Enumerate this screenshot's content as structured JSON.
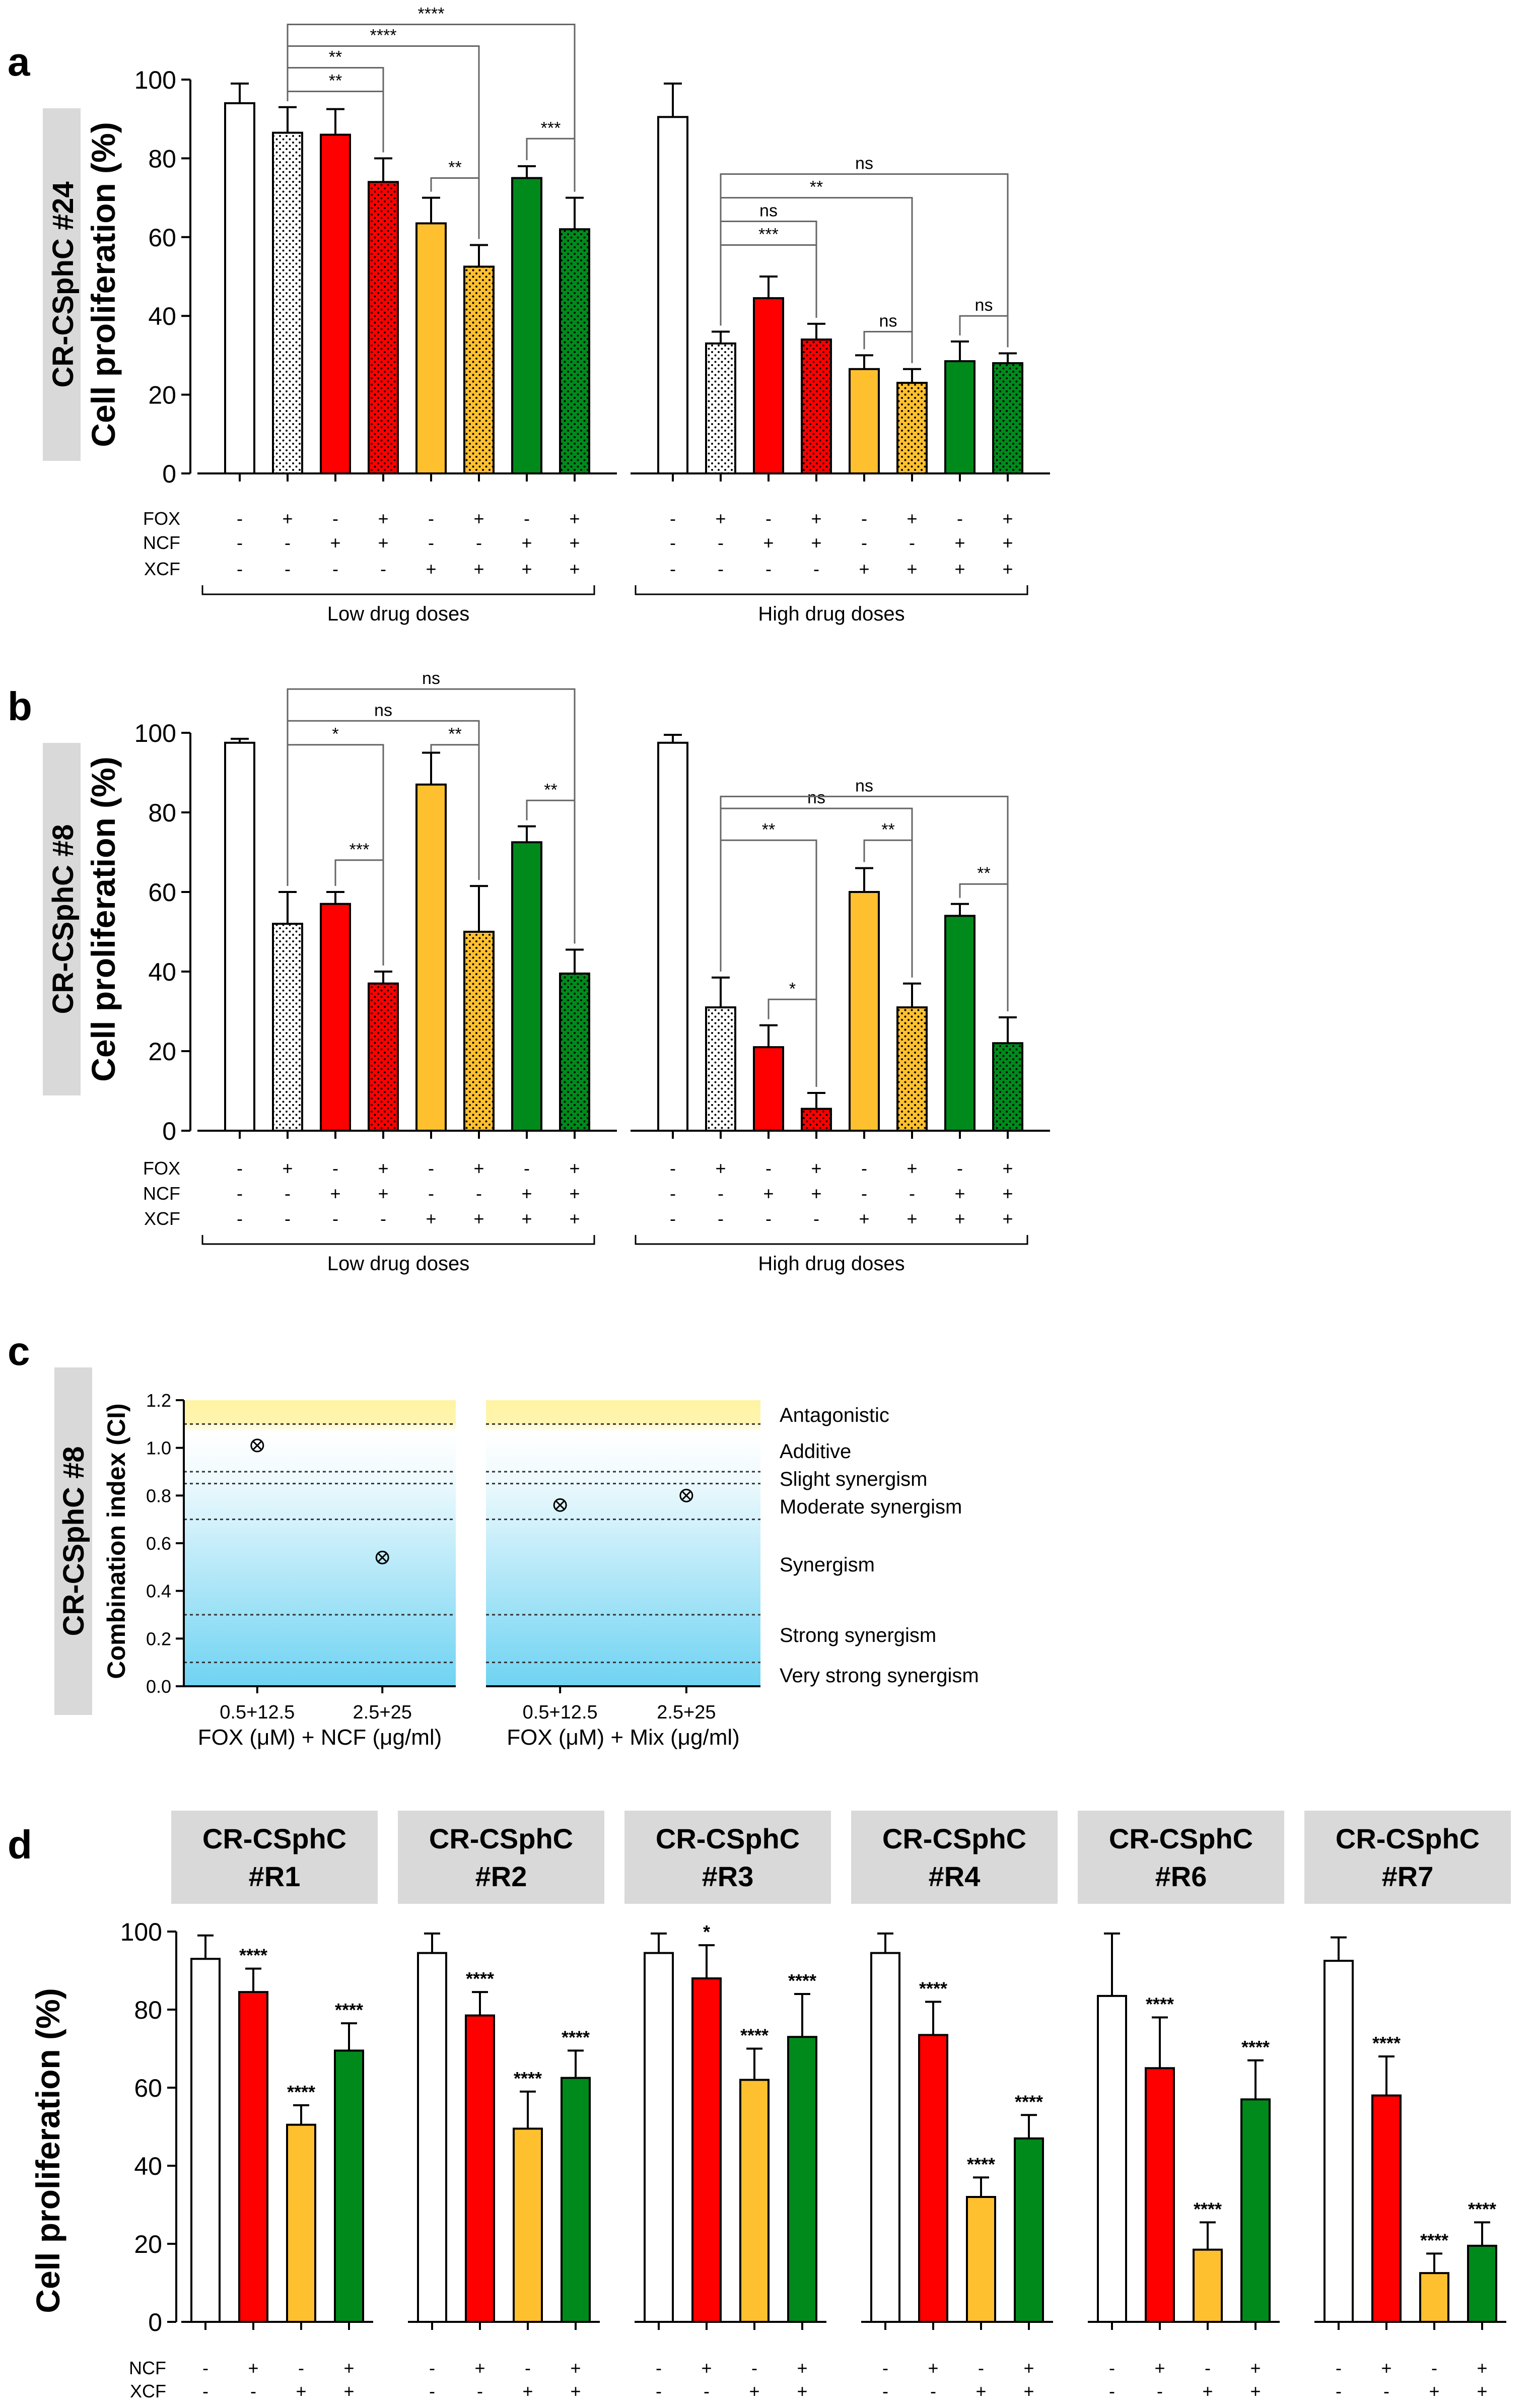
{
  "colors": {
    "white": "#ffffff",
    "red": "#ff0000",
    "orange": "#fec02f",
    "green": "#008a1c",
    "grey": "#d9d9d9",
    "ink": "#000000",
    "band_top": "#fff4b0",
    "band_mid": "#ffffff",
    "band_low": "#68d2f2"
  },
  "panel_labels": {
    "a": "a",
    "b": "b",
    "c": "c",
    "d": "d"
  },
  "chart_data": [
    {
      "id": "a",
      "type": "bar",
      "ylabel": "Cell proliferation (%)",
      "side_label": "CR-CSphC #24",
      "ylim": [
        0,
        100
      ],
      "yticks": [
        0,
        20,
        40,
        60,
        80,
        100
      ],
      "row_labels": [
        "FOX",
        "NCF",
        "XCF"
      ],
      "groups": [
        {
          "name": "Low drug doses",
          "bars": [
            {
              "value": 94,
              "error": 5,
              "color": "white",
              "dotted": false,
              "signs": [
                "-",
                "-",
                "-"
              ]
            },
            {
              "value": 86.5,
              "error": 6.5,
              "color": "white",
              "dotted": true,
              "signs": [
                "+",
                "-",
                "-"
              ]
            },
            {
              "value": 86,
              "error": 6.5,
              "color": "red",
              "dotted": false,
              "signs": [
                "-",
                "+",
                "-"
              ]
            },
            {
              "value": 74,
              "error": 6,
              "color": "red",
              "dotted": true,
              "signs": [
                "+",
                "+",
                "-"
              ]
            },
            {
              "value": 63.5,
              "error": 6.5,
              "color": "orange",
              "dotted": false,
              "signs": [
                "-",
                "-",
                "+"
              ]
            },
            {
              "value": 52.5,
              "error": 5.5,
              "color": "orange",
              "dotted": true,
              "signs": [
                "+",
                "-",
                "+"
              ]
            },
            {
              "value": 75,
              "error": 3,
              "color": "green",
              "dotted": false,
              "signs": [
                "-",
                "+",
                "+"
              ]
            },
            {
              "value": 62,
              "error": 8,
              "color": "green",
              "dotted": true,
              "signs": [
                "+",
                "+",
                "+"
              ]
            }
          ],
          "brackets": [
            {
              "from": 1,
              "to": 3,
              "level": 97,
              "label": "**"
            },
            {
              "from": 1,
              "to": 3,
              "level": 103,
              "label": "**"
            },
            {
              "from": 1,
              "to": 5,
              "level": 108.5,
              "label": "****"
            },
            {
              "from": 1,
              "to": 7,
              "level": 114,
              "label": "****"
            },
            {
              "from": 4,
              "to": 5,
              "level": 75,
              "label": "**"
            },
            {
              "from": 6,
              "to": 7,
              "level": 85,
              "label": "***"
            }
          ]
        },
        {
          "name": "High drug doses",
          "bars": [
            {
              "value": 90.5,
              "error": 8.5,
              "color": "white",
              "dotted": false,
              "signs": [
                "-",
                "-",
                "-"
              ]
            },
            {
              "value": 33,
              "error": 3,
              "color": "white",
              "dotted": true,
              "signs": [
                "+",
                "-",
                "-"
              ]
            },
            {
              "value": 44.5,
              "error": 5.5,
              "color": "red",
              "dotted": false,
              "signs": [
                "-",
                "+",
                "-"
              ]
            },
            {
              "value": 34,
              "error": 4,
              "color": "red",
              "dotted": true,
              "signs": [
                "+",
                "+",
                "-"
              ]
            },
            {
              "value": 26.5,
              "error": 3.5,
              "color": "orange",
              "dotted": false,
              "signs": [
                "-",
                "-",
                "+"
              ]
            },
            {
              "value": 23,
              "error": 3.5,
              "color": "orange",
              "dotted": true,
              "signs": [
                "+",
                "-",
                "+"
              ]
            },
            {
              "value": 28.5,
              "error": 5,
              "color": "green",
              "dotted": false,
              "signs": [
                "-",
                "+",
                "+"
              ]
            },
            {
              "value": 28,
              "error": 2.5,
              "color": "green",
              "dotted": true,
              "signs": [
                "+",
                "+",
                "+"
              ]
            }
          ],
          "brackets": [
            {
              "from": 1,
              "to": 3,
              "level": 58,
              "label": "***"
            },
            {
              "from": 1,
              "to": 3,
              "level": 64,
              "label": "ns"
            },
            {
              "from": 1,
              "to": 5,
              "level": 70,
              "label": "**"
            },
            {
              "from": 1,
              "to": 7,
              "level": 76,
              "label": "ns"
            },
            {
              "from": 4,
              "to": 5,
              "level": 36,
              "label": "ns"
            },
            {
              "from": 6,
              "to": 7,
              "level": 40,
              "label": "ns"
            }
          ]
        }
      ]
    },
    {
      "id": "b",
      "type": "bar",
      "ylabel": "Cell proliferation (%)",
      "side_label": "CR-CSphC #8",
      "ylim": [
        0,
        100
      ],
      "yticks": [
        0,
        20,
        40,
        60,
        80,
        100
      ],
      "row_labels": [
        "FOX",
        "NCF",
        "XCF"
      ],
      "groups": [
        {
          "name": "Low drug doses",
          "bars": [
            {
              "value": 97.5,
              "error": 1,
              "color": "white",
              "dotted": false,
              "signs": [
                "-",
                "-",
                "-"
              ]
            },
            {
              "value": 52,
              "error": 8,
              "color": "white",
              "dotted": true,
              "signs": [
                "+",
                "-",
                "-"
              ]
            },
            {
              "value": 57,
              "error": 3,
              "color": "red",
              "dotted": false,
              "signs": [
                "-",
                "+",
                "-"
              ]
            },
            {
              "value": 37,
              "error": 3,
              "color": "red",
              "dotted": true,
              "signs": [
                "+",
                "+",
                "-"
              ]
            },
            {
              "value": 87,
              "error": 8,
              "color": "orange",
              "dotted": false,
              "signs": [
                "-",
                "-",
                "+"
              ]
            },
            {
              "value": 50,
              "error": 11.5,
              "color": "orange",
              "dotted": true,
              "signs": [
                "+",
                "-",
                "+"
              ]
            },
            {
              "value": 72.5,
              "error": 4,
              "color": "green",
              "dotted": false,
              "signs": [
                "-",
                "+",
                "+"
              ]
            },
            {
              "value": 39.5,
              "error": 6,
              "color": "green",
              "dotted": true,
              "signs": [
                "+",
                "+",
                "+"
              ]
            }
          ],
          "brackets": [
            {
              "from": 2,
              "to": 3,
              "level": 68,
              "label": "***"
            },
            {
              "from": 1,
              "to": 3,
              "level": 97,
              "label": "*"
            },
            {
              "from": 1,
              "to": 5,
              "level": 103,
              "label": "ns"
            },
            {
              "from": 1,
              "to": 7,
              "level": 111,
              "label": "ns"
            },
            {
              "from": 4,
              "to": 5,
              "level": 97,
              "label": "**"
            },
            {
              "from": 6,
              "to": 7,
              "level": 83,
              "label": "**"
            }
          ]
        },
        {
          "name": "High drug doses",
          "bars": [
            {
              "value": 97.5,
              "error": 2,
              "color": "white",
              "dotted": false,
              "signs": [
                "-",
                "-",
                "-"
              ]
            },
            {
              "value": 31,
              "error": 7.5,
              "color": "white",
              "dotted": true,
              "signs": [
                "+",
                "-",
                "-"
              ]
            },
            {
              "value": 21,
              "error": 5.5,
              "color": "red",
              "dotted": false,
              "signs": [
                "-",
                "+",
                "-"
              ]
            },
            {
              "value": 5.5,
              "error": 4,
              "color": "red",
              "dotted": true,
              "signs": [
                "+",
                "+",
                "-"
              ]
            },
            {
              "value": 60,
              "error": 6,
              "color": "orange",
              "dotted": false,
              "signs": [
                "-",
                "-",
                "+"
              ]
            },
            {
              "value": 31,
              "error": 6,
              "color": "orange",
              "dotted": true,
              "signs": [
                "+",
                "-",
                "+"
              ]
            },
            {
              "value": 54,
              "error": 3,
              "color": "green",
              "dotted": false,
              "signs": [
                "-",
                "+",
                "+"
              ]
            },
            {
              "value": 22,
              "error": 6.5,
              "color": "green",
              "dotted": true,
              "signs": [
                "+",
                "+",
                "+"
              ]
            }
          ],
          "brackets": [
            {
              "from": 2,
              "to": 3,
              "level": 33,
              "label": "*"
            },
            {
              "from": 1,
              "to": 3,
              "level": 73,
              "label": "**"
            },
            {
              "from": 1,
              "to": 5,
              "level": 81,
              "label": "ns"
            },
            {
              "from": 1,
              "to": 7,
              "level": 84,
              "label": "ns"
            },
            {
              "from": 4,
              "to": 5,
              "level": 73,
              "label": "**"
            },
            {
              "from": 6,
              "to": 7,
              "level": 62,
              "label": "**"
            }
          ]
        }
      ]
    },
    {
      "id": "c",
      "type": "scatter",
      "ylabel": "Combination index (CI)",
      "side_label": "CR-CSphC #8",
      "ylim": [
        0,
        1.2
      ],
      "yticks": [
        "0.0",
        "0.2",
        "0.4",
        "0.6",
        "0.8",
        "1.0",
        "1.2"
      ],
      "ref_lines": [
        1.1,
        0.9,
        0.85,
        0.7,
        0.3,
        0.1
      ],
      "zones": [
        {
          "label": "Antagonistic",
          "y": 1.15
        },
        {
          "label": "Additive",
          "y": 1.0
        },
        {
          "label": "Slight synergism",
          "y": 0.885
        },
        {
          "label": "Moderate synergism",
          "y": 0.775
        },
        {
          "label": "Synergism",
          "y": 0.51
        },
        {
          "label": "Strong synergism",
          "y": 0.2
        },
        {
          "label": "Very strong synergism",
          "y": 0.055
        }
      ],
      "subplots": [
        {
          "xlabel": "FOX (μM) + NCF (μg/ml)",
          "categories": [
            "0.5+12.5",
            "2.5+25"
          ],
          "values": [
            1.01,
            0.54
          ]
        },
        {
          "xlabel": "FOX (μM) + Mix (μg/ml)",
          "categories": [
            "0.5+12.5",
            "2.5+25"
          ],
          "values": [
            0.76,
            0.8
          ]
        }
      ]
    },
    {
      "id": "d",
      "type": "bar",
      "ylabel": "Cell proliferation (%)",
      "ylim": [
        0,
        100
      ],
      "yticks": [
        0,
        20,
        40,
        60,
        80,
        100
      ],
      "row_labels": [
        "NCF",
        "XCF"
      ],
      "signs": [
        [
          "-",
          "-"
        ],
        [
          "+",
          "-"
        ],
        [
          "-",
          "+"
        ],
        [
          "+",
          "+"
        ]
      ],
      "panels": [
        {
          "title": [
            "CR-CSphC",
            "#R1"
          ],
          "values": [
            93,
            84.5,
            50.5,
            69.5
          ],
          "errors": [
            6,
            6,
            5,
            7
          ],
          "stars": [
            "",
            "****",
            "****",
            "****"
          ]
        },
        {
          "title": [
            "CR-CSphC",
            "#R2"
          ],
          "values": [
            94.5,
            78.5,
            49.5,
            62.5
          ],
          "errors": [
            5,
            6,
            9.5,
            7
          ],
          "stars": [
            "",
            "****",
            "****",
            "****"
          ]
        },
        {
          "title": [
            "CR-CSphC",
            "#R3"
          ],
          "values": [
            94.5,
            88,
            62,
            73
          ],
          "errors": [
            5,
            8.5,
            8,
            11
          ],
          "stars": [
            "",
            "*",
            "****",
            "****"
          ]
        },
        {
          "title": [
            "CR-CSphC",
            "#R4"
          ],
          "values": [
            94.5,
            73.5,
            32,
            47
          ],
          "errors": [
            5,
            8.5,
            5,
            6
          ],
          "stars": [
            "",
            "****",
            "****",
            "****"
          ]
        },
        {
          "title": [
            "CR-CSphC",
            "#R6"
          ],
          "values": [
            83.5,
            65,
            18.5,
            57
          ],
          "errors": [
            16,
            13,
            7,
            10
          ],
          "stars": [
            "",
            "****",
            "****",
            "****"
          ]
        },
        {
          "title": [
            "CR-CSphC",
            "#R7"
          ],
          "values": [
            92.5,
            58,
            12.5,
            19.5
          ],
          "errors": [
            6,
            10,
            5,
            6
          ],
          "stars": [
            "",
            "****",
            "****",
            "****"
          ]
        }
      ]
    }
  ]
}
